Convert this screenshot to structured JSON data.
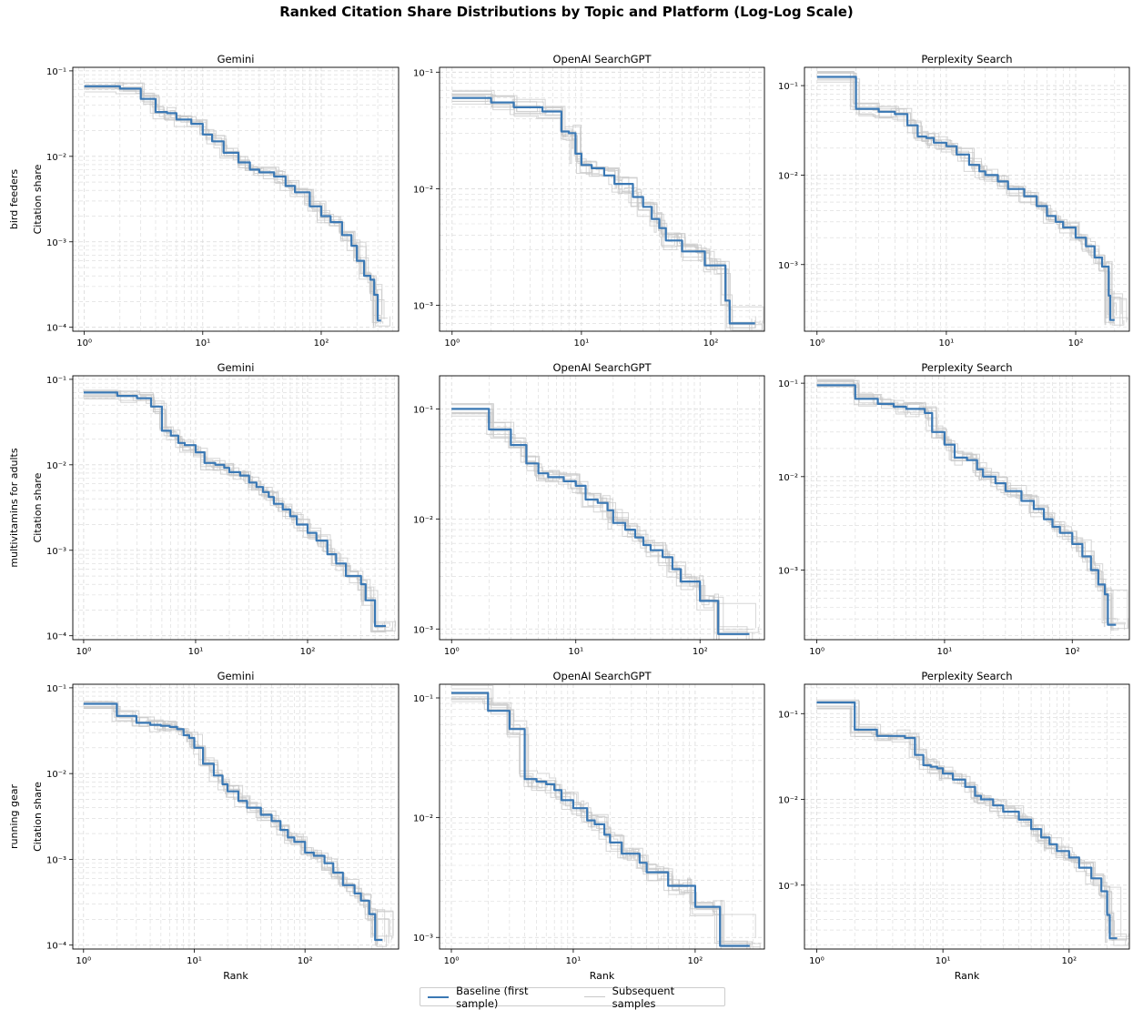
{
  "title": "Ranked Citation Share Distributions by Topic and Platform (Log-Log Scale)",
  "legend": {
    "baseline": "Baseline (first sample)",
    "subsequent": "Subsequent samples",
    "placement": "lower-center"
  },
  "colors": {
    "baseline": "#3a78b4",
    "subsequent": "#c8c8c8",
    "grid": "#d9d9d9"
  },
  "xlabel": "Rank",
  "ylabel": "Citation share",
  "chart_data": [
    {
      "type": "line",
      "topic": "bird feeders",
      "platform": "Gemini",
      "xscale": "log",
      "yscale": "log",
      "xlim": [
        0.8,
        450
      ],
      "ylim": [
        9e-05,
        0.11
      ],
      "xticks": [
        1,
        10,
        100
      ],
      "yticks": [
        0.0001,
        0.001,
        0.01,
        0.1
      ],
      "baseline": [
        [
          1,
          0.066
        ],
        [
          2,
          0.062
        ],
        [
          3,
          0.047
        ],
        [
          4,
          0.033
        ],
        [
          5,
          0.032
        ],
        [
          6,
          0.027
        ],
        [
          8,
          0.024
        ],
        [
          10,
          0.018
        ],
        [
          12,
          0.015
        ],
        [
          15,
          0.011
        ],
        [
          20,
          0.0085
        ],
        [
          25,
          0.007
        ],
        [
          30,
          0.0065
        ],
        [
          40,
          0.0058
        ],
        [
          50,
          0.0045
        ],
        [
          60,
          0.0038
        ],
        [
          80,
          0.0026
        ],
        [
          100,
          0.002
        ],
        [
          120,
          0.0017
        ],
        [
          150,
          0.0012
        ],
        [
          180,
          0.0009
        ],
        [
          200,
          0.0006
        ],
        [
          230,
          0.0004
        ],
        [
          260,
          0.00036
        ],
        [
          280,
          0.00024
        ],
        [
          300,
          0.00012
        ],
        [
          320,
          0.00012
        ]
      ]
    },
    {
      "type": "line",
      "topic": "bird feeders",
      "platform": "OpenAI SearchGPT",
      "xscale": "log",
      "yscale": "log",
      "xlim": [
        0.8,
        260
      ],
      "ylim": [
        0.0006,
        0.11
      ],
      "xticks": [
        1,
        10,
        100
      ],
      "yticks": [
        0.001,
        0.01,
        0.1
      ],
      "baseline": [
        [
          1,
          0.06
        ],
        [
          2,
          0.055
        ],
        [
          3,
          0.05
        ],
        [
          5,
          0.046
        ],
        [
          7,
          0.031
        ],
        [
          8,
          0.03
        ],
        [
          9,
          0.02
        ],
        [
          10,
          0.016
        ],
        [
          12,
          0.015
        ],
        [
          15,
          0.013
        ],
        [
          18,
          0.011
        ],
        [
          20,
          0.011
        ],
        [
          25,
          0.0085
        ],
        [
          30,
          0.007
        ],
        [
          35,
          0.0055
        ],
        [
          40,
          0.0046
        ],
        [
          45,
          0.0036
        ],
        [
          55,
          0.0036
        ],
        [
          60,
          0.0029
        ],
        [
          80,
          0.0029
        ],
        [
          90,
          0.0022
        ],
        [
          110,
          0.0022
        ],
        [
          130,
          0.0011
        ],
        [
          140,
          0.0007
        ],
        [
          220,
          0.0007
        ]
      ]
    },
    {
      "type": "line",
      "topic": "bird feeders",
      "platform": "Perplexity Search",
      "xscale": "log",
      "yscale": "log",
      "xlim": [
        0.8,
        260
      ],
      "ylim": [
        0.00018,
        0.16
      ],
      "xticks": [
        1,
        10,
        100
      ],
      "yticks": [
        0.001,
        0.01,
        0.1
      ],
      "baseline": [
        [
          1,
          0.125
        ],
        [
          2,
          0.055
        ],
        [
          3,
          0.051
        ],
        [
          4,
          0.048
        ],
        [
          5,
          0.036
        ],
        [
          6,
          0.027
        ],
        [
          7,
          0.026
        ],
        [
          8,
          0.023
        ],
        [
          10,
          0.021
        ],
        [
          12,
          0.017
        ],
        [
          15,
          0.013
        ],
        [
          18,
          0.011
        ],
        [
          20,
          0.01
        ],
        [
          25,
          0.0085
        ],
        [
          30,
          0.007
        ],
        [
          40,
          0.0058
        ],
        [
          50,
          0.0045
        ],
        [
          60,
          0.0035
        ],
        [
          70,
          0.003
        ],
        [
          80,
          0.0026
        ],
        [
          100,
          0.002
        ],
        [
          120,
          0.0016
        ],
        [
          140,
          0.0012
        ],
        [
          160,
          0.00095
        ],
        [
          180,
          0.00045
        ],
        [
          185,
          0.00024
        ],
        [
          200,
          0.00024
        ]
      ]
    },
    {
      "type": "line",
      "topic": "multivitamins for adults",
      "platform": "Gemini",
      "xscale": "log",
      "yscale": "log",
      "xlim": [
        0.8,
        650
      ],
      "ylim": [
        9e-05,
        0.11
      ],
      "xticks": [
        1,
        10,
        100
      ],
      "yticks": [
        0.0001,
        0.001,
        0.01,
        0.1
      ],
      "baseline": [
        [
          1,
          0.07
        ],
        [
          2,
          0.064
        ],
        [
          3,
          0.06
        ],
        [
          4,
          0.048
        ],
        [
          5,
          0.025
        ],
        [
          6,
          0.022
        ],
        [
          7,
          0.018
        ],
        [
          8,
          0.017
        ],
        [
          10,
          0.014
        ],
        [
          12,
          0.0105
        ],
        [
          15,
          0.01
        ],
        [
          18,
          0.0092
        ],
        [
          20,
          0.0082
        ],
        [
          25,
          0.0075
        ],
        [
          30,
          0.0062
        ],
        [
          35,
          0.0055
        ],
        [
          40,
          0.0048
        ],
        [
          45,
          0.0042
        ],
        [
          50,
          0.0035
        ],
        [
          60,
          0.003
        ],
        [
          70,
          0.0025
        ],
        [
          80,
          0.002
        ],
        [
          100,
          0.0016
        ],
        [
          120,
          0.0013
        ],
        [
          150,
          0.0009
        ],
        [
          180,
          0.0007
        ],
        [
          220,
          0.0005
        ],
        [
          300,
          0.0004
        ],
        [
          330,
          0.00026
        ],
        [
          400,
          0.00013
        ],
        [
          500,
          0.00013
        ]
      ]
    },
    {
      "type": "line",
      "topic": "multivitamins for adults",
      "platform": "OpenAI SearchGPT",
      "xscale": "log",
      "yscale": "log",
      "xlim": [
        0.8,
        330
      ],
      "ylim": [
        0.0008,
        0.2
      ],
      "xticks": [
        1,
        10,
        100
      ],
      "yticks": [
        0.001,
        0.01,
        0.1
      ],
      "baseline": [
        [
          1,
          0.1
        ],
        [
          2,
          0.065
        ],
        [
          3,
          0.047
        ],
        [
          4,
          0.032
        ],
        [
          5,
          0.026
        ],
        [
          6,
          0.024
        ],
        [
          8,
          0.022
        ],
        [
          10,
          0.02
        ],
        [
          12,
          0.015
        ],
        [
          15,
          0.014
        ],
        [
          18,
          0.012
        ],
        [
          20,
          0.0092
        ],
        [
          25,
          0.008
        ],
        [
          30,
          0.0068
        ],
        [
          35,
          0.0058
        ],
        [
          40,
          0.0052
        ],
        [
          50,
          0.0045
        ],
        [
          60,
          0.0035
        ],
        [
          70,
          0.0027
        ],
        [
          90,
          0.0027
        ],
        [
          100,
          0.0018
        ],
        [
          130,
          0.0018
        ],
        [
          140,
          0.0009
        ],
        [
          250,
          0.0009
        ]
      ]
    },
    {
      "type": "line",
      "topic": "multivitamins for adults",
      "platform": "Perplexity Search",
      "xscale": "log",
      "yscale": "log",
      "xlim": [
        0.8,
        280
      ],
      "ylim": [
        0.00018,
        0.12
      ],
      "xticks": [
        1,
        10,
        100
      ],
      "yticks": [
        0.001,
        0.01,
        0.1
      ],
      "baseline": [
        [
          1,
          0.095
        ],
        [
          2,
          0.068
        ],
        [
          3,
          0.06
        ],
        [
          4,
          0.056
        ],
        [
          5,
          0.053
        ],
        [
          7,
          0.048
        ],
        [
          8,
          0.03
        ],
        [
          10,
          0.022
        ],
        [
          12,
          0.016
        ],
        [
          15,
          0.015
        ],
        [
          18,
          0.012
        ],
        [
          20,
          0.01
        ],
        [
          25,
          0.0085
        ],
        [
          30,
          0.007
        ],
        [
          40,
          0.0055
        ],
        [
          50,
          0.0045
        ],
        [
          60,
          0.0035
        ],
        [
          70,
          0.0029
        ],
        [
          80,
          0.0025
        ],
        [
          100,
          0.0019
        ],
        [
          120,
          0.0014
        ],
        [
          140,
          0.001
        ],
        [
          160,
          0.0007
        ],
        [
          180,
          0.00055
        ],
        [
          190,
          0.00026
        ],
        [
          220,
          0.00026
        ]
      ]
    },
    {
      "type": "line",
      "topic": "running gear",
      "platform": "Gemini",
      "xscale": "log",
      "yscale": "log",
      "xlim": [
        0.8,
        700
      ],
      "ylim": [
        9e-05,
        0.11
      ],
      "xticks": [
        1,
        10,
        100
      ],
      "yticks": [
        0.0001,
        0.001,
        0.01,
        0.1
      ],
      "baseline": [
        [
          1,
          0.065
        ],
        [
          2,
          0.047
        ],
        [
          3,
          0.039
        ],
        [
          4,
          0.037
        ],
        [
          5,
          0.036
        ],
        [
          6,
          0.035
        ],
        [
          7,
          0.033
        ],
        [
          8,
          0.028
        ],
        [
          9,
          0.026
        ],
        [
          10,
          0.02
        ],
        [
          12,
          0.013
        ],
        [
          15,
          0.0095
        ],
        [
          18,
          0.0075
        ],
        [
          20,
          0.0062
        ],
        [
          25,
          0.0048
        ],
        [
          30,
          0.004
        ],
        [
          40,
          0.0033
        ],
        [
          50,
          0.0028
        ],
        [
          60,
          0.0022
        ],
        [
          70,
          0.0018
        ],
        [
          80,
          0.0016
        ],
        [
          100,
          0.0012
        ],
        [
          120,
          0.0011
        ],
        [
          150,
          0.0009
        ],
        [
          180,
          0.0007
        ],
        [
          220,
          0.0005
        ],
        [
          280,
          0.0004
        ],
        [
          320,
          0.00033
        ],
        [
          380,
          0.00023
        ],
        [
          420,
          0.00023
        ],
        [
          430,
          0.000115
        ],
        [
          500,
          0.000115
        ]
      ]
    },
    {
      "type": "line",
      "topic": "running gear",
      "platform": "OpenAI SearchGPT",
      "xscale": "log",
      "yscale": "log",
      "xlim": [
        0.8,
        370
      ],
      "ylim": [
        0.0008,
        0.13
      ],
      "xticks": [
        1,
        10,
        100
      ],
      "yticks": [
        0.001,
        0.01,
        0.1
      ],
      "baseline": [
        [
          1,
          0.11
        ],
        [
          2,
          0.078
        ],
        [
          3,
          0.055
        ],
        [
          4,
          0.021
        ],
        [
          5,
          0.02
        ],
        [
          6,
          0.019
        ],
        [
          7,
          0.017
        ],
        [
          8,
          0.014
        ],
        [
          10,
          0.012
        ],
        [
          12,
          0.012
        ],
        [
          13,
          0.0095
        ],
        [
          15,
          0.0088
        ],
        [
          18,
          0.0072
        ],
        [
          20,
          0.0062
        ],
        [
          25,
          0.005
        ],
        [
          30,
          0.005
        ],
        [
          35,
          0.0042
        ],
        [
          40,
          0.0035
        ],
        [
          50,
          0.0035
        ],
        [
          60,
          0.0027
        ],
        [
          80,
          0.0027
        ],
        [
          100,
          0.0018
        ],
        [
          150,
          0.0018
        ],
        [
          160,
          0.00085
        ],
        [
          280,
          0.00085
        ]
      ]
    },
    {
      "type": "line",
      "topic": "running gear",
      "platform": "Perplexity Search",
      "xscale": "log",
      "yscale": "log",
      "xlim": [
        0.8,
        300
      ],
      "ylim": [
        0.00018,
        0.22
      ],
      "xticks": [
        1,
        10,
        100
      ],
      "yticks": [
        0.001,
        0.01,
        0.1
      ],
      "baseline": [
        [
          1,
          0.135
        ],
        [
          2,
          0.065
        ],
        [
          3,
          0.055
        ],
        [
          4,
          0.055
        ],
        [
          5,
          0.052
        ],
        [
          6,
          0.033
        ],
        [
          7,
          0.025
        ],
        [
          8,
          0.024
        ],
        [
          9,
          0.023
        ],
        [
          10,
          0.02
        ],
        [
          12,
          0.017
        ],
        [
          15,
          0.014
        ],
        [
          18,
          0.011
        ],
        [
          20,
          0.01
        ],
        [
          25,
          0.0085
        ],
        [
          30,
          0.0072
        ],
        [
          40,
          0.0058
        ],
        [
          50,
          0.0045
        ],
        [
          60,
          0.0036
        ],
        [
          70,
          0.003
        ],
        [
          80,
          0.0025
        ],
        [
          100,
          0.0021
        ],
        [
          120,
          0.0016
        ],
        [
          150,
          0.0012
        ],
        [
          180,
          0.00085
        ],
        [
          200,
          0.00045
        ],
        [
          210,
          0.00024
        ],
        [
          240,
          0.00024
        ]
      ]
    }
  ]
}
